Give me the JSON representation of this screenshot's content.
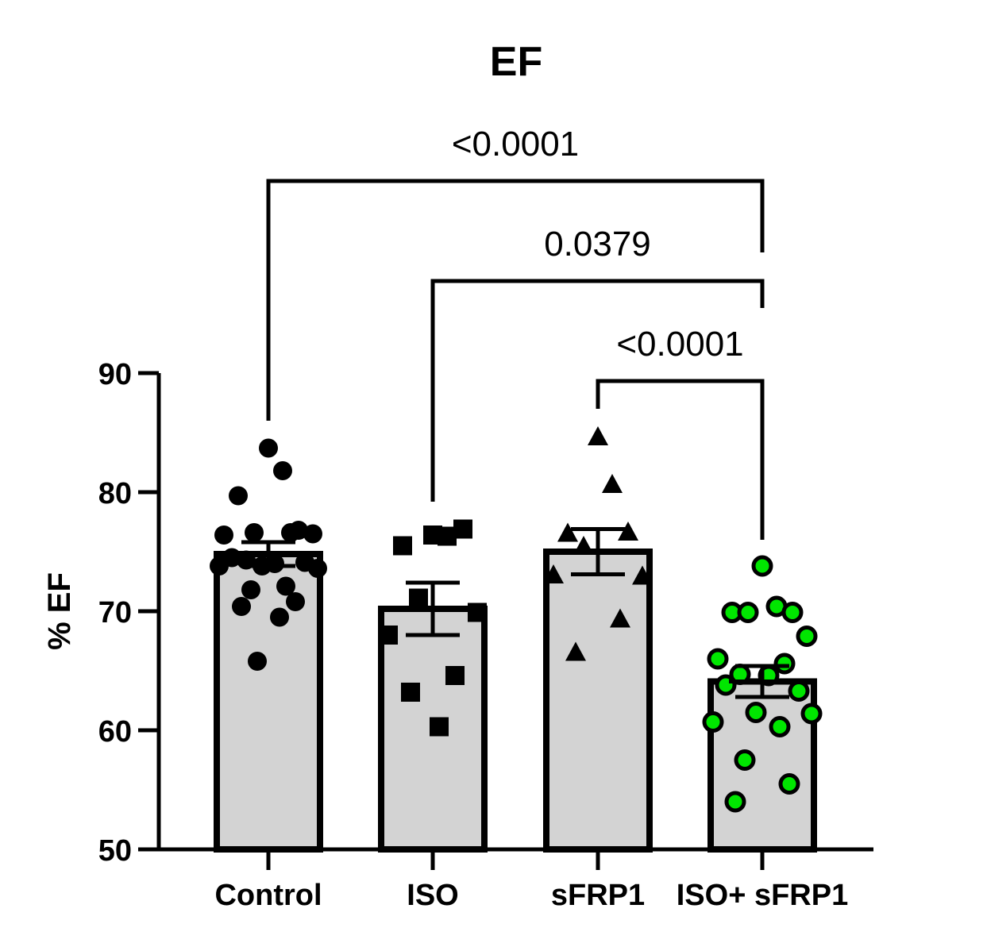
{
  "chart_data": {
    "type": "bar",
    "title": "EF",
    "xlabel": "",
    "ylabel": "% EF",
    "ylim": [
      50,
      90
    ],
    "yticks": [
      50,
      60,
      70,
      80,
      90
    ],
    "grid": false,
    "categories": [
      "Control",
      "ISO",
      "sFRP1",
      "ISO+ sFRP1"
    ],
    "means": [
      74.8,
      70.2,
      75.0,
      64.1
    ],
    "sem": [
      1.0,
      2.2,
      1.9,
      1.3
    ],
    "points": [
      [
        83.7,
        81.8,
        79.7,
        76.8,
        76.6,
        76.5,
        76.4,
        76.6,
        74.3,
        74.0,
        74.5,
        74.1,
        73.8,
        73.6,
        73.8,
        72.1,
        71.8,
        70.8,
        70.4,
        69.5,
        65.8
      ],
      [
        76.4,
        76.3,
        75.5,
        76.9,
        71.1,
        69.9,
        68.0,
        64.6,
        63.2,
        60.3
      ],
      [
        84.6,
        80.6,
        76.5,
        76.6,
        75.4,
        72.9,
        73.0,
        69.3,
        66.5
      ],
      [
        73.8,
        70.4,
        69.9,
        69.9,
        69.9,
        67.9,
        66.0,
        65.6,
        64.7,
        64.6,
        63.8,
        63.3,
        61.5,
        61.4,
        60.7,
        60.3,
        57.5,
        55.5,
        54.0
      ]
    ],
    "point_markers": [
      "circle",
      "square",
      "triangle",
      "circle"
    ],
    "point_colors": [
      "#000000",
      "#000000",
      "#000000",
      "#00e600"
    ],
    "bar_color": "#d3d3d3",
    "comparisons": [
      {
        "from": "Control",
        "to": "ISO+ sFRP1",
        "label": "<0.0001"
      },
      {
        "from": "ISO",
        "to": "ISO+ sFRP1",
        "label": "0.0379"
      },
      {
        "from": "sFRP1",
        "to": "ISO+ sFRP1",
        "label": "<0.0001"
      }
    ]
  }
}
